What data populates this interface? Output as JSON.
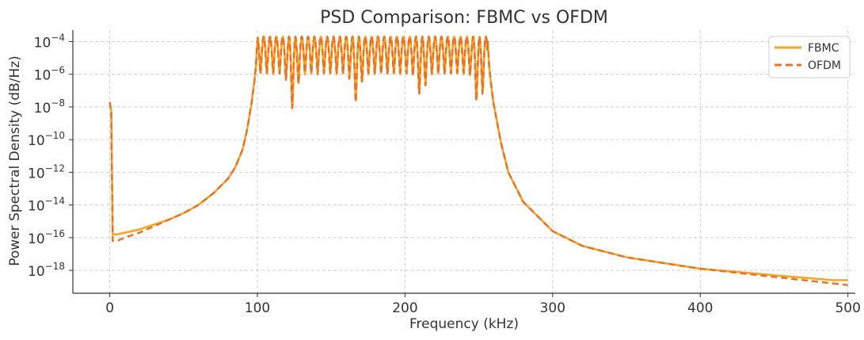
{
  "chart_data": {
    "type": "line",
    "title": "PSD Comparison: FBMC vs OFDM",
    "xlabel": "Frequency (kHz)",
    "ylabel": "Power Spectral Density (dB/Hz)",
    "xlim": [
      -25,
      505
    ],
    "ylim_log10": [
      -19.4,
      -3.3
    ],
    "yscale": "log",
    "grid": true,
    "legend_position": "top-right",
    "x_ticks": [
      0,
      100,
      200,
      300,
      400,
      500
    ],
    "x_tick_labels": [
      "0",
      "100",
      "200",
      "300",
      "400",
      "500"
    ],
    "y_ticks_log10": [
      -18,
      -16,
      -14,
      -12,
      -10,
      -8,
      -6,
      -4
    ],
    "y_tick_labels": [
      {
        "base": "10",
        "exp": "−18"
      },
      {
        "base": "10",
        "exp": "−16"
      },
      {
        "base": "10",
        "exp": "−14"
      },
      {
        "base": "10",
        "exp": "−12"
      },
      {
        "base": "10",
        "exp": "−10"
      },
      {
        "base": "10",
        "exp": "−8"
      },
      {
        "base": "10",
        "exp": "−6"
      },
      {
        "base": "10",
        "exp": "−4"
      }
    ],
    "series": [
      {
        "name": "FBMC",
        "color": "#f5a623",
        "style": "solid",
        "x": [
          0,
          1,
          2,
          5,
          10,
          20,
          30,
          40,
          50,
          60,
          70,
          80,
          85,
          90,
          93,
          96,
          98,
          99,
          100,
          256,
          257,
          258,
          260,
          265,
          270,
          280,
          300,
          320,
          350,
          400,
          450,
          490,
          500
        ],
        "log10_y": [
          -7.8,
          -8.2,
          -15.8,
          -15.8,
          -15.7,
          -15.5,
          -15.2,
          -14.9,
          -14.5,
          -14.0,
          -13.3,
          -12.4,
          -11.7,
          -10.6,
          -9.4,
          -7.8,
          -6.4,
          -5.5,
          -4.0,
          -4.0,
          -5.5,
          -6.4,
          -7.8,
          -10.2,
          -12.0,
          -13.8,
          -15.6,
          -16.5,
          -17.2,
          -17.9,
          -18.3,
          -18.6,
          -18.6
        ]
      },
      {
        "name": "OFDM",
        "color": "#e8702a",
        "style": "dashed",
        "x": [
          0,
          1,
          2,
          5,
          10,
          20,
          30,
          40,
          50,
          60,
          70,
          80,
          85,
          90,
          93,
          96,
          98,
          99,
          100,
          256,
          257,
          258,
          260,
          265,
          270,
          280,
          300,
          320,
          350,
          400,
          450,
          490,
          500
        ],
        "log10_y": [
          -7.7,
          -8.3,
          -16.2,
          -16.2,
          -16.0,
          -15.7,
          -15.3,
          -14.9,
          -14.5,
          -14.0,
          -13.3,
          -12.4,
          -11.7,
          -10.6,
          -9.4,
          -7.8,
          -6.4,
          -5.5,
          -4.0,
          -4.0,
          -5.5,
          -6.4,
          -7.8,
          -10.2,
          -12.0,
          -13.8,
          -15.6,
          -16.5,
          -17.2,
          -17.9,
          -18.4,
          -18.8,
          -18.9
        ]
      }
    ],
    "passband": {
      "x_range": [
        100,
        256
      ],
      "peak_log10": -3.7,
      "oscillation_period_khz": 4.3,
      "envelope_dips": [
        {
          "x": 124,
          "log10_min": -8.2
        },
        {
          "x": 167,
          "log10_min": -7.8
        },
        {
          "x": 211,
          "log10_min": -7.5
        },
        {
          "x": 250,
          "log10_min": -8.1
        }
      ],
      "baseline_log10_min": -6.0
    }
  }
}
